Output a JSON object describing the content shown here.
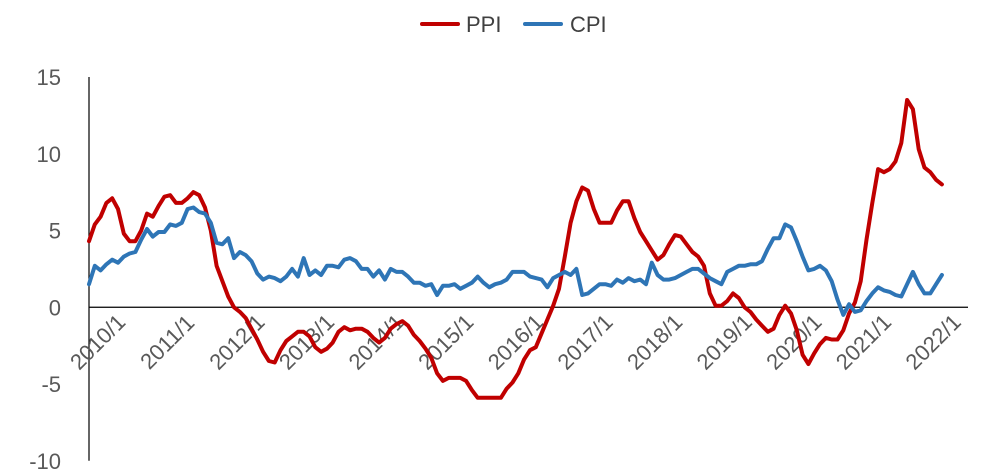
{
  "chart_data": {
    "type": "line",
    "title": "",
    "xlabel": "",
    "ylabel": "",
    "ylim": [
      -10,
      15
    ],
    "yticks": [
      -10,
      -5,
      0,
      5,
      10,
      15
    ],
    "ytick_labels": [
      "-10",
      "-5",
      "0",
      "5",
      "10",
      "15"
    ],
    "x_range": [
      "2010/1",
      "2022/8"
    ],
    "x_tick_labels": [
      "2010/1",
      "2011/1",
      "2012/1",
      "2013/1",
      "2014/1",
      "2015/1",
      "2016/1",
      "2017/1",
      "2018/1",
      "2019/1",
      "2020/1",
      "2021/1",
      "2022/1"
    ],
    "grid": false,
    "legend_position": "top-center",
    "series": [
      {
        "name": "PPI",
        "color": "#C00000",
        "points": [
          [
            "2010/01",
            4.3
          ],
          [
            "2010/02",
            5.4
          ],
          [
            "2010/03",
            5.9
          ],
          [
            "2010/04",
            6.8
          ],
          [
            "2010/05",
            7.1
          ],
          [
            "2010/06",
            6.4
          ],
          [
            "2010/07",
            4.8
          ],
          [
            "2010/08",
            4.3
          ],
          [
            "2010/09",
            4.3
          ],
          [
            "2010/10",
            5.0
          ],
          [
            "2010/11",
            6.1
          ],
          [
            "2010/12",
            5.9
          ],
          [
            "2011/01",
            6.6
          ],
          [
            "2011/02",
            7.2
          ],
          [
            "2011/03",
            7.3
          ],
          [
            "2011/04",
            6.8
          ],
          [
            "2011/05",
            6.8
          ],
          [
            "2011/06",
            7.1
          ],
          [
            "2011/07",
            7.5
          ],
          [
            "2011/08",
            7.3
          ],
          [
            "2011/09",
            6.5
          ],
          [
            "2011/10",
            5.0
          ],
          [
            "2011/11",
            2.7
          ],
          [
            "2011/12",
            1.7
          ],
          [
            "2012/01",
            0.7
          ],
          [
            "2012/02",
            0.0
          ],
          [
            "2012/03",
            -0.3
          ],
          [
            "2012/04",
            -0.7
          ],
          [
            "2012/05",
            -1.4
          ],
          [
            "2012/06",
            -2.1
          ],
          [
            "2012/07",
            -2.9
          ],
          [
            "2012/08",
            -3.5
          ],
          [
            "2012/09",
            -3.6
          ],
          [
            "2012/10",
            -2.8
          ],
          [
            "2012/11",
            -2.2
          ],
          [
            "2012/12",
            -1.9
          ],
          [
            "2013/01",
            -1.6
          ],
          [
            "2013/02",
            -1.6
          ],
          [
            "2013/03",
            -1.9
          ],
          [
            "2013/04",
            -2.6
          ],
          [
            "2013/05",
            -2.9
          ],
          [
            "2013/06",
            -2.7
          ],
          [
            "2013/07",
            -2.3
          ],
          [
            "2013/08",
            -1.6
          ],
          [
            "2013/09",
            -1.3
          ],
          [
            "2013/10",
            -1.5
          ],
          [
            "2013/11",
            -1.4
          ],
          [
            "2013/12",
            -1.4
          ],
          [
            "2014/01",
            -1.6
          ],
          [
            "2014/02",
            -2.0
          ],
          [
            "2014/03",
            -2.3
          ],
          [
            "2014/04",
            -2.0
          ],
          [
            "2014/05",
            -1.4
          ],
          [
            "2014/06",
            -1.1
          ],
          [
            "2014/07",
            -0.9
          ],
          [
            "2014/08",
            -1.2
          ],
          [
            "2014/09",
            -1.8
          ],
          [
            "2014/10",
            -2.2
          ],
          [
            "2014/11",
            -2.7
          ],
          [
            "2014/12",
            -3.3
          ],
          [
            "2015/01",
            -4.3
          ],
          [
            "2015/02",
            -4.8
          ],
          [
            "2015/03",
            -4.6
          ],
          [
            "2015/04",
            -4.6
          ],
          [
            "2015/05",
            -4.6
          ],
          [
            "2015/06",
            -4.8
          ],
          [
            "2015/07",
            -5.4
          ],
          [
            "2015/08",
            -5.9
          ],
          [
            "2015/09",
            -5.9
          ],
          [
            "2015/10",
            -5.9
          ],
          [
            "2015/11",
            -5.9
          ],
          [
            "2015/12",
            -5.9
          ],
          [
            "2016/01",
            -5.3
          ],
          [
            "2016/02",
            -4.9
          ],
          [
            "2016/03",
            -4.3
          ],
          [
            "2016/04",
            -3.4
          ],
          [
            "2016/05",
            -2.8
          ],
          [
            "2016/06",
            -2.6
          ],
          [
            "2016/07",
            -1.7
          ],
          [
            "2016/08",
            -0.8
          ],
          [
            "2016/09",
            0.1
          ],
          [
            "2016/10",
            1.2
          ],
          [
            "2016/11",
            3.3
          ],
          [
            "2016/12",
            5.5
          ],
          [
            "2017/01",
            6.9
          ],
          [
            "2017/02",
            7.8
          ],
          [
            "2017/03",
            7.6
          ],
          [
            "2017/04",
            6.4
          ],
          [
            "2017/05",
            5.5
          ],
          [
            "2017/06",
            5.5
          ],
          [
            "2017/07",
            5.5
          ],
          [
            "2017/08",
            6.3
          ],
          [
            "2017/09",
            6.9
          ],
          [
            "2017/10",
            6.9
          ],
          [
            "2017/11",
            5.8
          ],
          [
            "2017/12",
            4.9
          ],
          [
            "2018/01",
            4.3
          ],
          [
            "2018/02",
            3.7
          ],
          [
            "2018/03",
            3.1
          ],
          [
            "2018/04",
            3.4
          ],
          [
            "2018/05",
            4.1
          ],
          [
            "2018/06",
            4.7
          ],
          [
            "2018/07",
            4.6
          ],
          [
            "2018/08",
            4.1
          ],
          [
            "2018/09",
            3.6
          ],
          [
            "2018/10",
            3.3
          ],
          [
            "2018/11",
            2.7
          ],
          [
            "2018/12",
            0.9
          ],
          [
            "2019/01",
            0.1
          ],
          [
            "2019/02",
            0.1
          ],
          [
            "2019/03",
            0.4
          ],
          [
            "2019/04",
            0.9
          ],
          [
            "2019/05",
            0.6
          ],
          [
            "2019/06",
            0.0
          ],
          [
            "2019/07",
            -0.3
          ],
          [
            "2019/08",
            -0.8
          ],
          [
            "2019/09",
            -1.2
          ],
          [
            "2019/10",
            -1.6
          ],
          [
            "2019/11",
            -1.4
          ],
          [
            "2019/12",
            -0.5
          ],
          [
            "2020/01",
            0.1
          ],
          [
            "2020/02",
            -0.4
          ],
          [
            "2020/03",
            -1.5
          ],
          [
            "2020/04",
            -3.1
          ],
          [
            "2020/05",
            -3.7
          ],
          [
            "2020/06",
            -3.0
          ],
          [
            "2020/07",
            -2.4
          ],
          [
            "2020/08",
            -2.0
          ],
          [
            "2020/09",
            -2.1
          ],
          [
            "2020/10",
            -2.1
          ],
          [
            "2020/11",
            -1.5
          ],
          [
            "2020/12",
            -0.4
          ],
          [
            "2021/01",
            0.3
          ],
          [
            "2021/02",
            1.7
          ],
          [
            "2021/03",
            4.4
          ],
          [
            "2021/04",
            6.8
          ],
          [
            "2021/05",
            9.0
          ],
          [
            "2021/06",
            8.8
          ],
          [
            "2021/07",
            9.0
          ],
          [
            "2021/08",
            9.5
          ],
          [
            "2021/09",
            10.7
          ],
          [
            "2021/10",
            13.5
          ],
          [
            "2021/11",
            12.9
          ],
          [
            "2021/12",
            10.3
          ],
          [
            "2022/01",
            9.1
          ],
          [
            "2022/02",
            8.8
          ],
          [
            "2022/03",
            8.3
          ],
          [
            "2022/04",
            8.0
          ]
        ]
      },
      {
        "name": "CPI",
        "color": "#2E75B6",
        "points": [
          [
            "2010/01",
            1.5
          ],
          [
            "2010/02",
            2.7
          ],
          [
            "2010/03",
            2.4
          ],
          [
            "2010/04",
            2.8
          ],
          [
            "2010/05",
            3.1
          ],
          [
            "2010/06",
            2.9
          ],
          [
            "2010/07",
            3.3
          ],
          [
            "2010/08",
            3.5
          ],
          [
            "2010/09",
            3.6
          ],
          [
            "2010/10",
            4.4
          ],
          [
            "2010/11",
            5.1
          ],
          [
            "2010/12",
            4.6
          ],
          [
            "2011/01",
            4.9
          ],
          [
            "2011/02",
            4.9
          ],
          [
            "2011/03",
            5.4
          ],
          [
            "2011/04",
            5.3
          ],
          [
            "2011/05",
            5.5
          ],
          [
            "2011/06",
            6.4
          ],
          [
            "2011/07",
            6.5
          ],
          [
            "2011/08",
            6.2
          ],
          [
            "2011/09",
            6.1
          ],
          [
            "2011/10",
            5.5
          ],
          [
            "2011/11",
            4.2
          ],
          [
            "2011/12",
            4.1
          ],
          [
            "2012/01",
            4.5
          ],
          [
            "2012/02",
            3.2
          ],
          [
            "2012/03",
            3.6
          ],
          [
            "2012/04",
            3.4
          ],
          [
            "2012/05",
            3.0
          ],
          [
            "2012/06",
            2.2
          ],
          [
            "2012/07",
            1.8
          ],
          [
            "2012/08",
            2.0
          ],
          [
            "2012/09",
            1.9
          ],
          [
            "2012/10",
            1.7
          ],
          [
            "2012/11",
            2.0
          ],
          [
            "2012/12",
            2.5
          ],
          [
            "2013/01",
            2.0
          ],
          [
            "2013/02",
            3.2
          ],
          [
            "2013/03",
            2.1
          ],
          [
            "2013/04",
            2.4
          ],
          [
            "2013/05",
            2.1
          ],
          [
            "2013/06",
            2.7
          ],
          [
            "2013/07",
            2.7
          ],
          [
            "2013/08",
            2.6
          ],
          [
            "2013/09",
            3.1
          ],
          [
            "2013/10",
            3.2
          ],
          [
            "2013/11",
            3.0
          ],
          [
            "2013/12",
            2.5
          ],
          [
            "2014/01",
            2.5
          ],
          [
            "2014/02",
            2.0
          ],
          [
            "2014/03",
            2.4
          ],
          [
            "2014/04",
            1.8
          ],
          [
            "2014/05",
            2.5
          ],
          [
            "2014/06",
            2.3
          ],
          [
            "2014/07",
            2.3
          ],
          [
            "2014/08",
            2.0
          ],
          [
            "2014/09",
            1.6
          ],
          [
            "2014/10",
            1.6
          ],
          [
            "2014/11",
            1.4
          ],
          [
            "2014/12",
            1.5
          ],
          [
            "2015/01",
            0.8
          ],
          [
            "2015/02",
            1.4
          ],
          [
            "2015/03",
            1.4
          ],
          [
            "2015/04",
            1.5
          ],
          [
            "2015/05",
            1.2
          ],
          [
            "2015/06",
            1.4
          ],
          [
            "2015/07",
            1.6
          ],
          [
            "2015/08",
            2.0
          ],
          [
            "2015/09",
            1.6
          ],
          [
            "2015/10",
            1.3
          ],
          [
            "2015/11",
            1.5
          ],
          [
            "2015/12",
            1.6
          ],
          [
            "2016/01",
            1.8
          ],
          [
            "2016/02",
            2.3
          ],
          [
            "2016/03",
            2.3
          ],
          [
            "2016/04",
            2.3
          ],
          [
            "2016/05",
            2.0
          ],
          [
            "2016/06",
            1.9
          ],
          [
            "2016/07",
            1.8
          ],
          [
            "2016/08",
            1.3
          ],
          [
            "2016/09",
            1.9
          ],
          [
            "2016/10",
            2.1
          ],
          [
            "2016/11",
            2.3
          ],
          [
            "2016/12",
            2.1
          ],
          [
            "2017/01",
            2.5
          ],
          [
            "2017/02",
            0.8
          ],
          [
            "2017/03",
            0.9
          ],
          [
            "2017/04",
            1.2
          ],
          [
            "2017/05",
            1.5
          ],
          [
            "2017/06",
            1.5
          ],
          [
            "2017/07",
            1.4
          ],
          [
            "2017/08",
            1.8
          ],
          [
            "2017/09",
            1.6
          ],
          [
            "2017/10",
            1.9
          ],
          [
            "2017/11",
            1.7
          ],
          [
            "2017/12",
            1.8
          ],
          [
            "2018/01",
            1.5
          ],
          [
            "2018/02",
            2.9
          ],
          [
            "2018/03",
            2.1
          ],
          [
            "2018/04",
            1.8
          ],
          [
            "2018/05",
            1.8
          ],
          [
            "2018/06",
            1.9
          ],
          [
            "2018/07",
            2.1
          ],
          [
            "2018/08",
            2.3
          ],
          [
            "2018/09",
            2.5
          ],
          [
            "2018/10",
            2.5
          ],
          [
            "2018/11",
            2.2
          ],
          [
            "2018/12",
            1.9
          ],
          [
            "2019/01",
            1.7
          ],
          [
            "2019/02",
            1.5
          ],
          [
            "2019/03",
            2.3
          ],
          [
            "2019/04",
            2.5
          ],
          [
            "2019/05",
            2.7
          ],
          [
            "2019/06",
            2.7
          ],
          [
            "2019/07",
            2.8
          ],
          [
            "2019/08",
            2.8
          ],
          [
            "2019/09",
            3.0
          ],
          [
            "2019/10",
            3.8
          ],
          [
            "2019/11",
            4.5
          ],
          [
            "2019/12",
            4.5
          ],
          [
            "2020/01",
            5.4
          ],
          [
            "2020/02",
            5.2
          ],
          [
            "2020/03",
            4.3
          ],
          [
            "2020/04",
            3.3
          ],
          [
            "2020/05",
            2.4
          ],
          [
            "2020/06",
            2.5
          ],
          [
            "2020/07",
            2.7
          ],
          [
            "2020/08",
            2.4
          ],
          [
            "2020/09",
            1.7
          ],
          [
            "2020/10",
            0.5
          ],
          [
            "2020/11",
            -0.5
          ],
          [
            "2020/12",
            0.2
          ],
          [
            "2021/01",
            -0.3
          ],
          [
            "2021/02",
            -0.2
          ],
          [
            "2021/03",
            0.4
          ],
          [
            "2021/04",
            0.9
          ],
          [
            "2021/05",
            1.3
          ],
          [
            "2021/06",
            1.1
          ],
          [
            "2021/07",
            1.0
          ],
          [
            "2021/08",
            0.8
          ],
          [
            "2021/09",
            0.7
          ],
          [
            "2021/10",
            1.5
          ],
          [
            "2021/11",
            2.3
          ],
          [
            "2021/12",
            1.5
          ],
          [
            "2022/01",
            0.9
          ],
          [
            "2022/02",
            0.9
          ],
          [
            "2022/03",
            1.5
          ],
          [
            "2022/04",
            2.1
          ]
        ]
      }
    ]
  }
}
